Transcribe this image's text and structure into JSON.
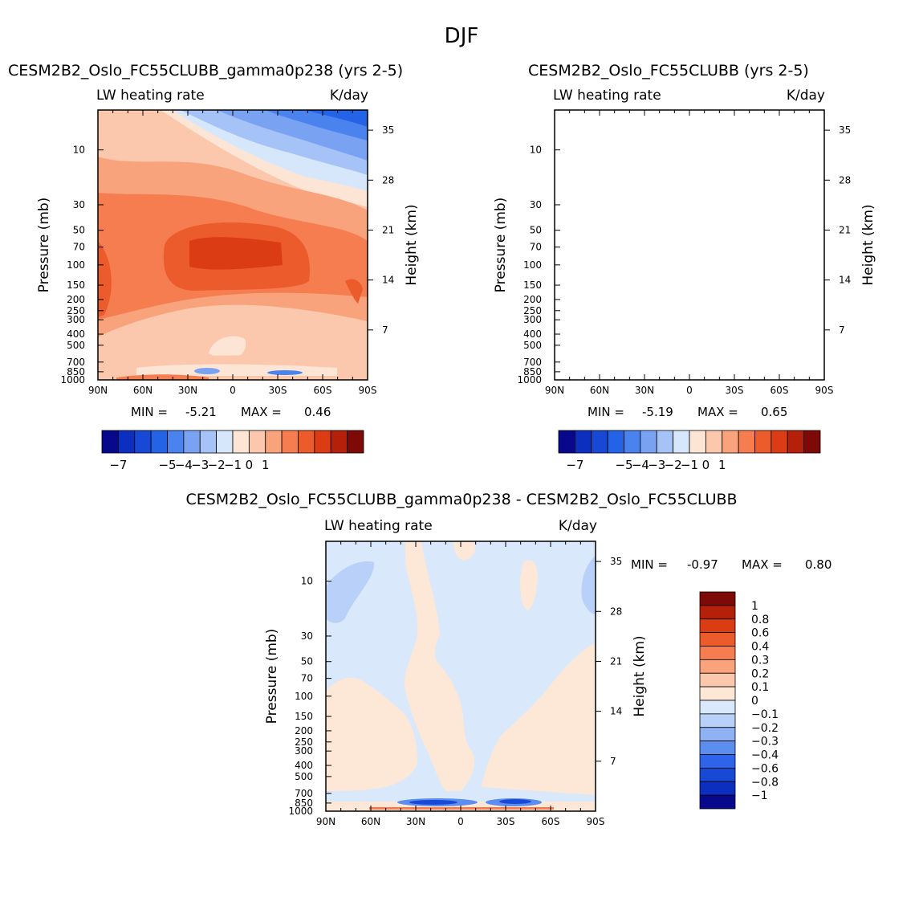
{
  "figure": {
    "season": "DJF"
  },
  "colors": {
    "absolute": [
      "#08088c",
      "#0d2fbf",
      "#1848d6",
      "#2463e6",
      "#4a82ee",
      "#7aa2f2",
      "#a6c3f7",
      "#d6e6fb",
      "#fde5d6",
      "#fcc8ad",
      "#f9a37c",
      "#f57d4f",
      "#ec5b2c",
      "#dc3c14",
      "#b4200a",
      "#7d0a06"
    ],
    "difference": [
      "#08088c",
      "#0d2fbf",
      "#1848d6",
      "#2f63e8",
      "#5c8ef0",
      "#8fb2f4",
      "#b9d0f8",
      "#d9e8fb",
      "#fde8d8",
      "#fcc8ad",
      "#f9a37c",
      "#f57d4f",
      "#ec5b2c",
      "#dc3c14",
      "#b4200a",
      "#7d0a06"
    ]
  },
  "chart_data": [
    {
      "type": "heatmap",
      "title": "CESM2B2_Oslo_FC55CLUBB_gamma0p238 (yrs 2-5)",
      "variable_label": "LW heating rate",
      "units_label": "K/day",
      "ylabel": "Pressure (mb)",
      "y2label": "Height (km)",
      "x_ticks": [
        "90N",
        "60N",
        "30N",
        "0",
        "30S",
        "60S",
        "90S"
      ],
      "y_ticks": [
        "10",
        "30",
        "50",
        "70",
        "100",
        "150",
        "200",
        "250",
        "300",
        "400",
        "500",
        "700",
        "850",
        "1000"
      ],
      "y2_ticks": [
        "35",
        "28",
        "21",
        "14",
        "7"
      ],
      "min_label": "MIN =",
      "min_value": "-5.21",
      "max_label": "MAX =",
      "max_value": "0.46",
      "colorbar_labels": [
        "-7",
        "-5",
        "-4",
        "-3",
        "-2",
        "-1",
        "0",
        "1"
      ]
    },
    {
      "type": "heatmap",
      "title": "CESM2B2_Oslo_FC55CLUBB (yrs 2-5)",
      "variable_label": "LW heating rate",
      "units_label": "K/day",
      "ylabel": "Pressure (mb)",
      "y2label": "Height (km)",
      "x_ticks": [
        "90N",
        "60N",
        "30N",
        "0",
        "30S",
        "60S",
        "90S"
      ],
      "y_ticks": [
        "10",
        "30",
        "50",
        "70",
        "100",
        "150",
        "200",
        "250",
        "300",
        "400",
        "500",
        "700",
        "850",
        "1000"
      ],
      "y2_ticks": [
        "35",
        "28",
        "21",
        "14",
        "7"
      ],
      "min_label": "MIN =",
      "min_value": "-5.19",
      "max_label": "MAX =",
      "max_value": "0.65",
      "colorbar_labels": [
        "-7",
        "-5",
        "-4",
        "-3",
        "-2",
        "-1",
        "0",
        "1"
      ]
    },
    {
      "type": "heatmap",
      "title": "CESM2B2_Oslo_FC55CLUBB_gamma0p238 - CESM2B2_Oslo_FC55CLUBB",
      "variable_label": "LW heating rate",
      "units_label": "K/day",
      "ylabel": "Pressure (mb)",
      "y2label": "Height (km)",
      "x_ticks": [
        "90N",
        "60N",
        "30N",
        "0",
        "30S",
        "60S",
        "90S"
      ],
      "y_ticks": [
        "10",
        "30",
        "50",
        "70",
        "100",
        "150",
        "200",
        "250",
        "300",
        "400",
        "500",
        "700",
        "850",
        "1000"
      ],
      "y2_ticks": [
        "35",
        "28",
        "21",
        "14",
        "7"
      ],
      "min_label": "MIN =",
      "min_value": "-0.97",
      "max_label": "MAX =",
      "max_value": "0.80",
      "colorbar_labels": [
        "1",
        "0.8",
        "0.6",
        "0.4",
        "0.3",
        "0.2",
        "0.1",
        "0",
        "-0.1",
        "-0.2",
        "-0.3",
        "-0.4",
        "-0.6",
        "-0.8",
        "-1"
      ]
    }
  ]
}
